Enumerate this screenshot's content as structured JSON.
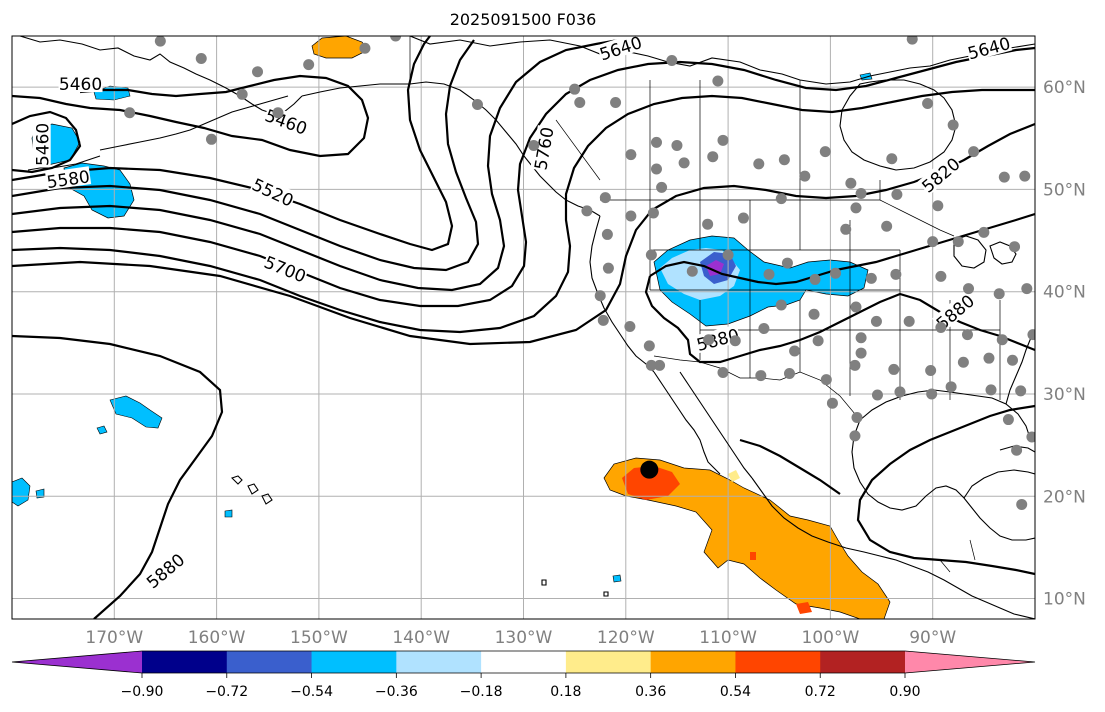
{
  "title": "2025091500 F036",
  "chart_data": {
    "type": "map",
    "title": "2025091500 F036",
    "projection": "PlateCarree",
    "lon_range": [
      -180,
      -80
    ],
    "lat_range": [
      8,
      65
    ],
    "lon_ticks": [
      -170,
      -160,
      -150,
      -140,
      -130,
      -120,
      -110,
      -100,
      -90
    ],
    "lon_tick_labels": [
      "170°W",
      "160°W",
      "150°W",
      "140°W",
      "130°W",
      "120°W",
      "110°W",
      "100°W",
      "90°W"
    ],
    "lat_ticks": [
      10,
      20,
      30,
      40,
      50,
      60
    ],
    "lat_tick_labels": [
      "10°N",
      "20°N",
      "30°N",
      "40°N",
      "50°N",
      "60°N"
    ],
    "grid": true,
    "contour_labels": [
      {
        "text": "5640",
        "lon": -120.5,
        "lat": 63.8
      },
      {
        "text": "5640",
        "lon": -84.5,
        "lat": 63.8
      },
      {
        "text": "5460",
        "lon": -173.3,
        "lat": 60.3
      },
      {
        "text": "5460",
        "lon": -153.2,
        "lat": 56.6
      },
      {
        "text": "5460",
        "lon": -177.0,
        "lat": 54.4
      },
      {
        "text": "5580",
        "lon": -174.5,
        "lat": 51.0
      },
      {
        "text": "5520",
        "lon": -154.5,
        "lat": 49.7
      },
      {
        "text": "5700",
        "lon": -153.3,
        "lat": 42.2
      },
      {
        "text": "5760",
        "lon": -128.0,
        "lat": 54.0
      },
      {
        "text": "5820",
        "lon": -89.2,
        "lat": 51.4
      },
      {
        "text": "5880",
        "lon": -87.8,
        "lat": 38.0
      },
      {
        "text": "5880",
        "lon": -111.0,
        "lat": 35.3
      },
      {
        "text": "5880",
        "lon": -165.0,
        "lat": 12.7
      }
    ],
    "colorbar": {
      "orientation": "horizontal",
      "extend": "both",
      "ticks": [
        -0.9,
        -0.72,
        -0.54,
        -0.36,
        -0.18,
        0.18,
        0.36,
        0.54,
        0.72,
        0.9
      ],
      "tick_labels": [
        "−0.90",
        "−0.72",
        "−0.54",
        "−0.36",
        "−0.18",
        "0.18",
        "0.36",
        "0.54",
        "0.72",
        "0.90"
      ],
      "colors": [
        "#9b30d0",
        "#00008b",
        "#3a5fcd",
        "#00bfff",
        "#b0e2ff",
        "#ffffff",
        "#ffec8b",
        "#ffa500",
        "#ff4500",
        "#b22222",
        "#ff88aa"
      ]
    },
    "stations": [
      [
        -165.5,
        64.5
      ],
      [
        -161.5,
        62.8
      ],
      [
        -156,
        61.5
      ],
      [
        -151,
        62.2
      ],
      [
        -145.5,
        63.8
      ],
      [
        -157.5,
        59.3
      ],
      [
        -168.5,
        57.5
      ],
      [
        -160.5,
        54.9
      ],
      [
        -154,
        57.5
      ],
      [
        -142.5,
        65
      ],
      [
        -134.5,
        58.3
      ],
      [
        -129,
        54.3
      ],
      [
        -125,
        59.8
      ],
      [
        -121,
        58.5
      ],
      [
        -124.5,
        58.5
      ],
      [
        -111,
        60.6
      ],
      [
        -115.5,
        62.6
      ],
      [
        -92,
        64.7
      ],
      [
        -88,
        56.3
      ],
      [
        -90.5,
        58.4
      ],
      [
        -83,
        51.2
      ],
      [
        -86,
        53.7
      ],
      [
        -81,
        51.3
      ],
      [
        -119.5,
        53.4
      ],
      [
        -117,
        52
      ],
      [
        -114.3,
        52.6
      ],
      [
        -111.5,
        53.2
      ],
      [
        -115,
        54.3
      ],
      [
        -117,
        54.6
      ],
      [
        -110.5,
        54.8
      ],
      [
        -107,
        52.5
      ],
      [
        -104.5,
        52.9
      ],
      [
        -102.5,
        51.3
      ],
      [
        -100.5,
        53.7
      ],
      [
        -98,
        50.6
      ],
      [
        -94,
        53
      ],
      [
        -97,
        49.6
      ],
      [
        -93.5,
        49.5
      ],
      [
        -89.5,
        48.4
      ],
      [
        -116.5,
        50.2
      ],
      [
        -122,
        49.2
      ],
      [
        -123.8,
        47.9
      ],
      [
        -121.8,
        45.6
      ],
      [
        -121.7,
        42.3
      ],
      [
        -119.5,
        47.4
      ],
      [
        -117.3,
        47.7
      ],
      [
        -112,
        46.6
      ],
      [
        -108.5,
        47.2
      ],
      [
        -104.8,
        49.1
      ],
      [
        -98.5,
        46.1
      ],
      [
        -97.5,
        48.2
      ],
      [
        -94.5,
        46.4
      ],
      [
        -90,
        44.9
      ],
      [
        -87.5,
        44.9
      ],
      [
        -85,
        45.8
      ],
      [
        -82,
        44.4
      ],
      [
        -117.5,
        43.6
      ],
      [
        -113.5,
        42
      ],
      [
        -110,
        43.6
      ],
      [
        -106,
        41.7
      ],
      [
        -104.2,
        42.8
      ],
      [
        -101.5,
        41.2
      ],
      [
        -99.5,
        41.8
      ],
      [
        -96,
        41.3
      ],
      [
        -93.6,
        41.7
      ],
      [
        -89.2,
        41.5
      ],
      [
        -86.5,
        40.3
      ],
      [
        -83.5,
        39.8
      ],
      [
        -80.8,
        40.3
      ],
      [
        -122.5,
        39.6
      ],
      [
        -122.2,
        37.2
      ],
      [
        -119.6,
        36.6
      ],
      [
        -117.7,
        34.7
      ],
      [
        -116.7,
        32.8
      ],
      [
        -111.9,
        35.3
      ],
      [
        -109.3,
        35.2
      ],
      [
        -106.5,
        36.4
      ],
      [
        -104.8,
        38.7
      ],
      [
        -101.6,
        37.8
      ],
      [
        -97.5,
        38.5
      ],
      [
        -95.5,
        37.1
      ],
      [
        -92.3,
        37.1
      ],
      [
        -89.2,
        36.5
      ],
      [
        -86.6,
        35.8
      ],
      [
        -83.2,
        35.3
      ],
      [
        -80.2,
        35.8
      ],
      [
        -97,
        35.5
      ],
      [
        -97,
        34
      ],
      [
        -101.2,
        35.2
      ],
      [
        -103.5,
        34.2
      ],
      [
        -110.5,
        32.1
      ],
      [
        -106.8,
        31.8
      ],
      [
        -104,
        32
      ],
      [
        -100.4,
        31.4
      ],
      [
        -97.6,
        32.8
      ],
      [
        -93.8,
        32.4
      ],
      [
        -90.2,
        32.3
      ],
      [
        -87,
        33.1
      ],
      [
        -84.5,
        33.5
      ],
      [
        -82.2,
        33.3
      ],
      [
        -81.4,
        30.3
      ],
      [
        -84.3,
        30.4
      ],
      [
        -88.2,
        30.7
      ],
      [
        -90.1,
        30
      ],
      [
        -93.2,
        30.2
      ],
      [
        -95.4,
        29.9
      ],
      [
        -99.8,
        29.1
      ],
      [
        -97.4,
        27.7
      ],
      [
        -97.6,
        25.9
      ],
      [
        -82.6,
        27.5
      ],
      [
        -80.3,
        25.8
      ],
      [
        -81.8,
        24.5
      ],
      [
        -81.3,
        19.2
      ],
      [
        -117.5,
        32.8
      ]
    ],
    "marker": {
      "lon": -117.7,
      "lat": 22.6,
      "shape": "circle",
      "color": "#000000"
    }
  }
}
